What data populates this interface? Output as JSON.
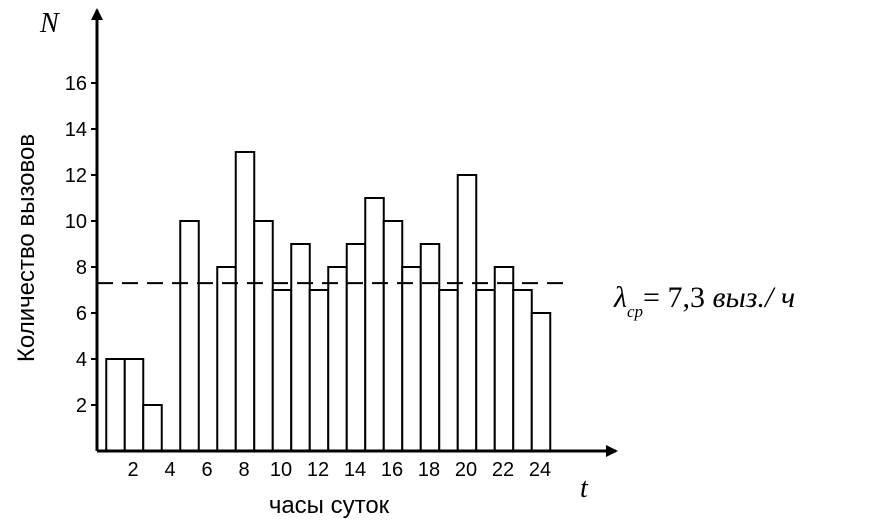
{
  "chart_data": {
    "type": "bar",
    "x_name": "t",
    "y_name": "N",
    "xlabel": "часы суток",
    "ylabel": "Количество вызовов",
    "categories": [
      1,
      2,
      3,
      4,
      5,
      6,
      7,
      8,
      9,
      10,
      11,
      12,
      13,
      14,
      15,
      16,
      17,
      18,
      19,
      20,
      21,
      22,
      23,
      24
    ],
    "values": [
      4,
      4,
      2,
      0,
      10,
      0,
      8,
      13,
      10,
      7,
      9,
      7,
      8,
      9,
      11,
      10,
      8,
      9,
      7,
      12,
      7,
      8,
      7,
      6
    ],
    "x_tick_labels": [
      "2",
      "4",
      "6",
      "8",
      "10",
      "12",
      "14",
      "16",
      "18",
      "20",
      "22",
      "24"
    ],
    "x_tick_values": [
      2,
      4,
      6,
      8,
      10,
      12,
      14,
      16,
      18,
      20,
      22,
      24
    ],
    "y_ticks": [
      2,
      4,
      6,
      8,
      10,
      12,
      14,
      16
    ],
    "ylim": [
      0,
      17
    ],
    "reference_line": {
      "value": 7.3,
      "style": "dashed",
      "label_symbol": "λ",
      "label_subscript": "ср",
      "label_text": "= 7,3 ",
      "label_unit": "выз./ ч"
    },
    "grid": false,
    "legend": "none"
  }
}
